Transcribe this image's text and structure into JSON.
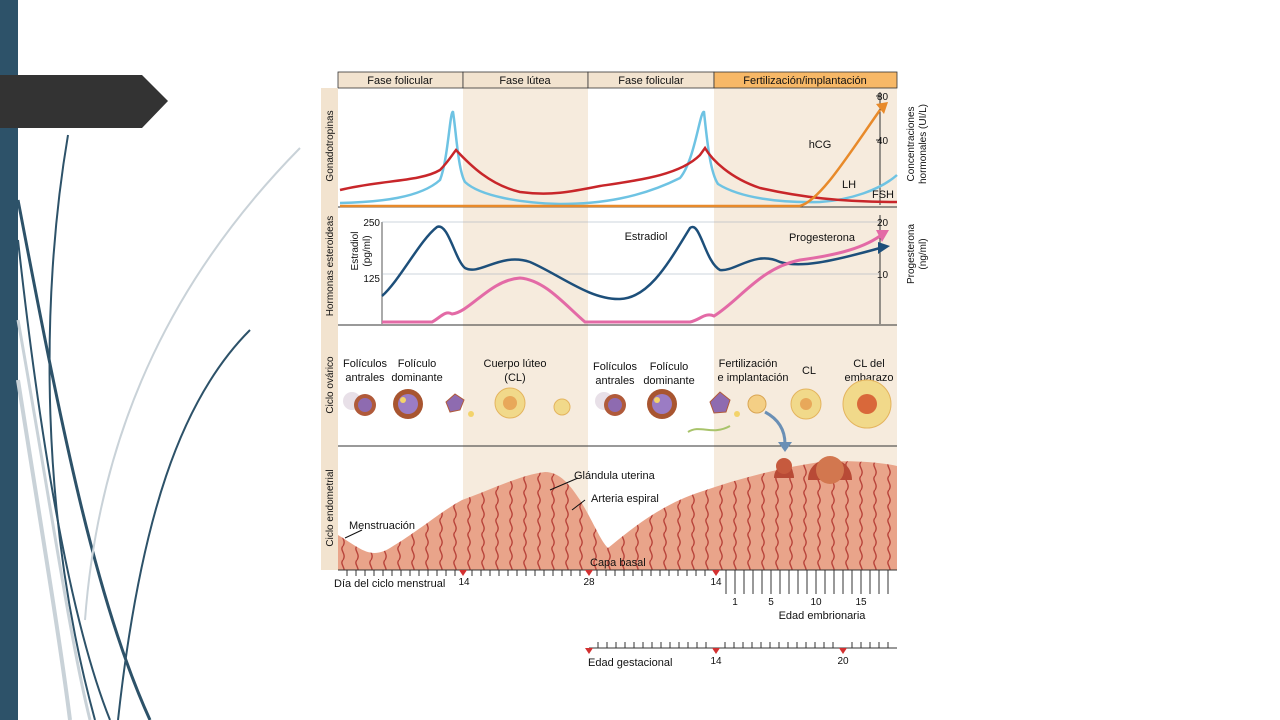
{
  "slide": {
    "colors": {
      "sidebar": "#2d5269",
      "tab": "#333333",
      "curve_dark": "#2d5269",
      "curve_light": "#c9d2d8"
    }
  },
  "figure": {
    "phases": [
      {
        "label": "Fase folicular",
        "color": "#f2e3cf"
      },
      {
        "label": "Fase lútea",
        "color": "#f2e3cf"
      },
      {
        "label": "Fase folicular",
        "color": "#f2e3cf"
      },
      {
        "label": "Fertilización/implantación",
        "color": "#f7b867"
      }
    ],
    "row_labels": {
      "gonadotropins": "Gonadotropinas",
      "steroids": "Hormonas esteroideas",
      "ovarian": "Ciclo ovárico",
      "endometrial": "Ciclo endometrial"
    },
    "gonadotropins": {
      "right_axis_line1": "Concentraciones",
      "right_axis_line2": "hormonales (UI/L)",
      "ticks": [
        "80",
        "40"
      ],
      "labels": {
        "hcg": "hCG",
        "lh": "LH",
        "fsh": "FSH"
      }
    },
    "steroids": {
      "left_axis_line1": "Estradiol",
      "left_axis_line2": "(pg/ml)",
      "left_ticks": [
        "250",
        "125"
      ],
      "right_axis_line1": "Progesterona",
      "right_axis_line2": "(ng/ml)",
      "right_ticks": [
        "20",
        "10"
      ],
      "labels": {
        "estradiol": "Estradiol",
        "progesterone": "Progesterona"
      }
    },
    "ovarian": {
      "labels": [
        {
          "line1": "Folículos",
          "line2": "antrales"
        },
        {
          "line1": "Folículo",
          "line2": "dominante"
        },
        {
          "line1": "Cuerpo lúteo",
          "line2": "(CL)"
        },
        {
          "line1": "Folículos",
          "line2": "antrales"
        },
        {
          "line1": "Folículo",
          "line2": "dominante"
        },
        {
          "line1": "Fertilización",
          "line2": "e implantación"
        },
        {
          "line1": "CL",
          "line2": ""
        },
        {
          "line1": "CL del",
          "line2": "embarazo"
        }
      ]
    },
    "endometrial": {
      "labels": {
        "gland": "Glándula uterina",
        "artery": "Arteria espiral",
        "menstruation": "Menstruación",
        "basal": "Capa basal"
      }
    },
    "axes": {
      "cycle_label": "Día del ciclo menstrual",
      "cycle_ticks": [
        "14",
        "28",
        "14"
      ],
      "embryo_ticks": [
        "1",
        "5",
        "10",
        "15"
      ],
      "embryo_label": "Edad embrionaria",
      "gest_label": "Edad gestacional",
      "gest_ticks": [
        "14",
        "20"
      ]
    },
    "series_colors": {
      "lh": "#6ec3e3",
      "fsh": "#c8262a",
      "hcg": "#e88a2a",
      "estradiol": "#1d4f7a",
      "progesterone": "#e36aa6"
    }
  }
}
